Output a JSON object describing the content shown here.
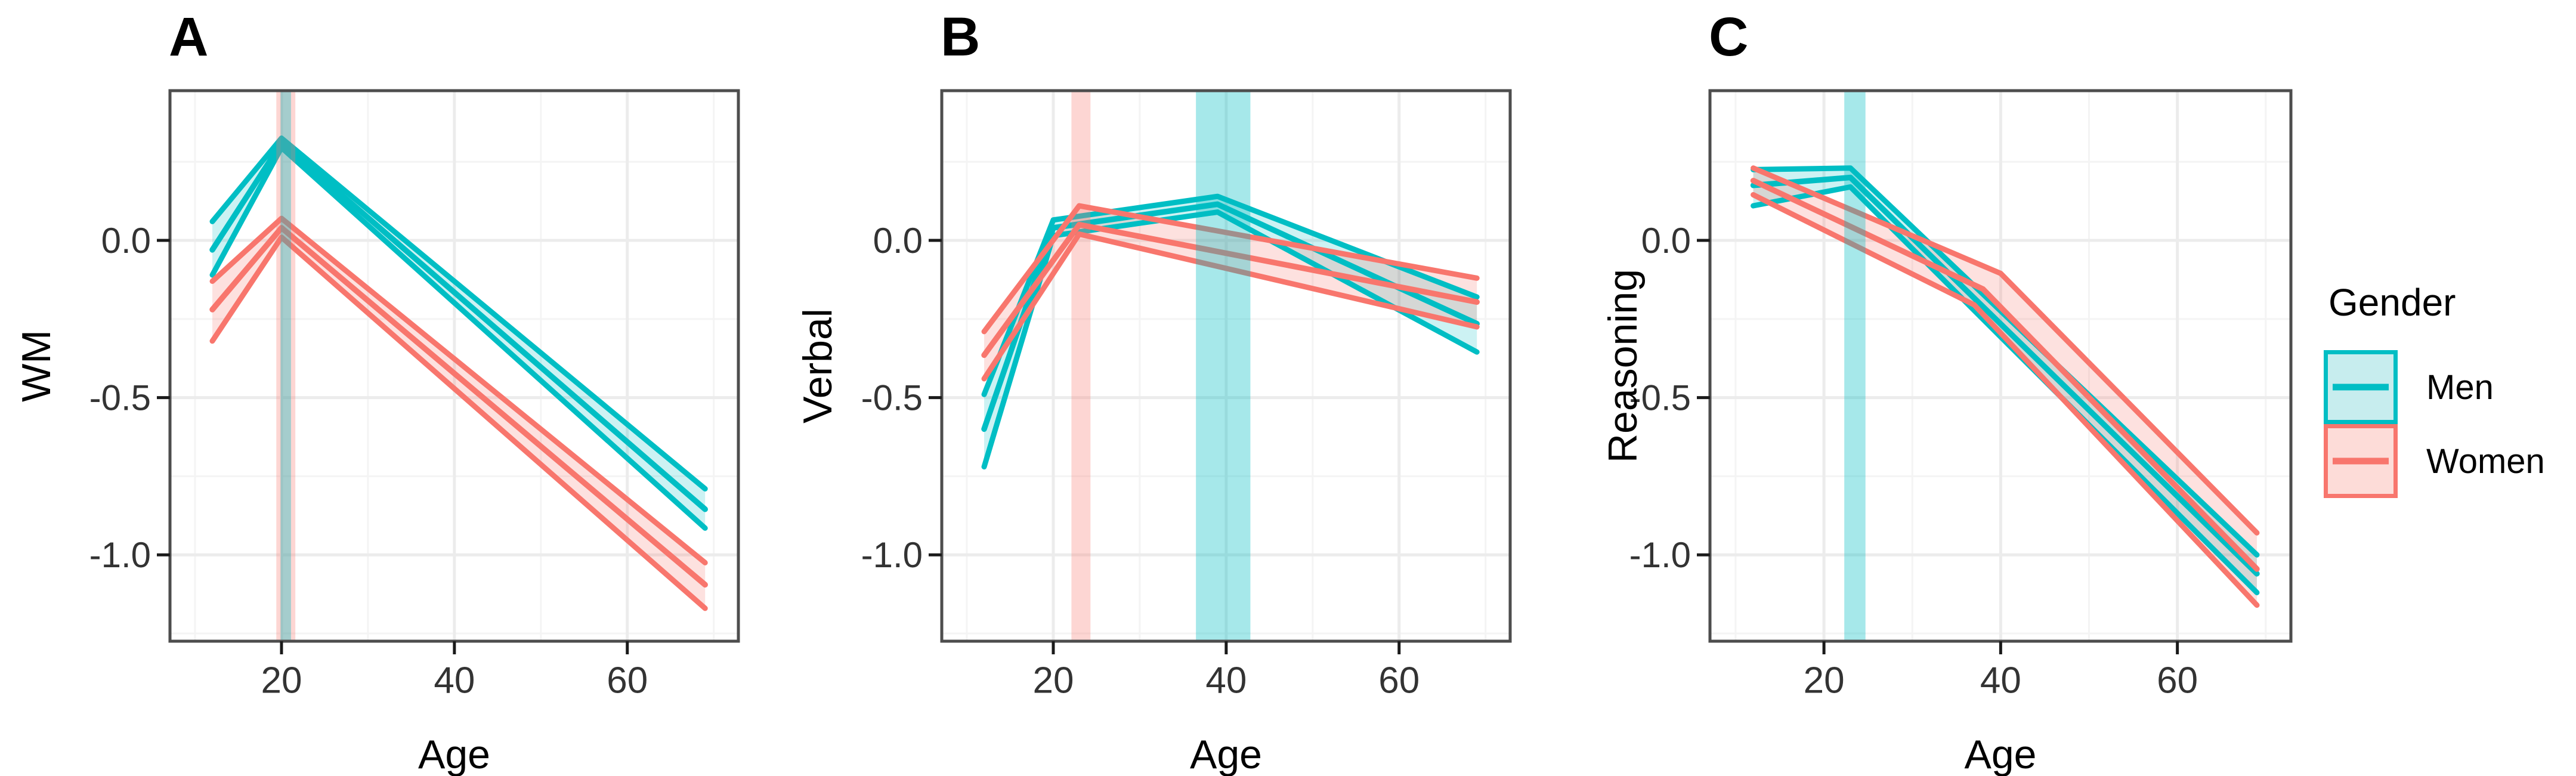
{
  "figure_type": "three-panel ggplot line figure of cognitive scores vs age by gender",
  "colors": {
    "men_line": "#00BEC4",
    "women_line": "#F8766D",
    "men_ribbon": "rgba(0,190,196,0.20)",
    "women_ribbon": "rgba(248,118,109,0.22)",
    "men_band": "rgba(0,190,196,0.35)",
    "women_band": "rgba(248,118,109,0.30)",
    "men_key_fill": "#C7EDEE",
    "women_key_fill": "#FDDCD8",
    "grid_major": "#ECECEC",
    "grid_minor": "#F4F4F4",
    "panel_border": "#4D4D4D",
    "tick_mark": "#1A1A1A",
    "tick_label": "#333333",
    "title_text": "#000000",
    "background": "#FFFFFF"
  },
  "legend": {
    "title": "Gender",
    "items": [
      {
        "label": "Men",
        "color_key": "men"
      },
      {
        "label": "Women",
        "color_key": "women"
      }
    ]
  },
  "axes_shared": {
    "x_label": "Age",
    "x_range": [
      7.1,
      72.85
    ],
    "y_range": [
      -1.2746,
      0.4761
    ],
    "x_ticks": [
      20,
      40,
      60
    ],
    "x_tick_labels": [
      "20",
      "40",
      "60"
    ],
    "x_minor_ticks": [
      10,
      30,
      50,
      70
    ],
    "y_ticks": [
      0.0,
      -0.5,
      -1.0
    ],
    "y_tick_labels": [
      "0.0",
      "-0.5",
      "-1.0"
    ],
    "y_minor_ticks": [
      0.25,
      -0.25,
      -0.75,
      -1.25
    ],
    "grid": "major+minor"
  },
  "chart_data": [
    {
      "type": "line",
      "panel_label": "A",
      "xlabel": "Age",
      "ylabel": "WM",
      "x_range": [
        7.1,
        72.85
      ],
      "y_range": [
        -1.2746,
        0.4761
      ],
      "x_ticks": [
        20,
        40,
        60
      ],
      "y_ticks": [
        0.0,
        -0.5,
        -1.0
      ],
      "series": [
        {
          "name": "Men",
          "color_key": "men",
          "mean": [
            [
              12,
              -0.03
            ],
            [
              20,
              0.31
            ],
            [
              69,
              -0.855
            ]
          ],
          "upper": [
            [
              12,
              0.06
            ],
            [
              20,
              0.325
            ],
            [
              69,
              -0.79
            ]
          ],
          "lower": [
            [
              12,
              -0.11
            ],
            [
              20,
              0.295
            ],
            [
              69,
              -0.915
            ]
          ]
        },
        {
          "name": "Women",
          "color_key": "women",
          "mean": [
            [
              12,
              -0.22
            ],
            [
              20,
              0.04
            ],
            [
              69,
              -1.095
            ]
          ],
          "upper": [
            [
              12,
              -0.13
            ],
            [
              20,
              0.07
            ],
            [
              69,
              -1.025
            ]
          ],
          "lower": [
            [
              12,
              -0.32
            ],
            [
              20,
              0.01
            ],
            [
              69,
              -1.17
            ]
          ]
        }
      ],
      "peak_age_bands": [
        {
          "series": "Women",
          "color_key": "women",
          "from": 19.4,
          "to": 21.6
        },
        {
          "series": "Men",
          "color_key": "men",
          "from": 19.9,
          "to": 21.1
        }
      ]
    },
    {
      "type": "line",
      "panel_label": "B",
      "xlabel": "Age",
      "ylabel": "Verbal",
      "x_range": [
        7.1,
        72.85
      ],
      "y_range": [
        -1.2746,
        0.4761
      ],
      "x_ticks": [
        20,
        40,
        60
      ],
      "y_ticks": [
        0.0,
        -0.5,
        -1.0
      ],
      "series": [
        {
          "name": "Men",
          "color_key": "men",
          "mean": [
            [
              12,
              -0.6
            ],
            [
              20,
              0.04
            ],
            [
              39,
              0.115
            ],
            [
              69,
              -0.265
            ]
          ],
          "upper": [
            [
              12,
              -0.49
            ],
            [
              20,
              0.065
            ],
            [
              39,
              0.14
            ],
            [
              69,
              -0.18
            ]
          ],
          "lower": [
            [
              12,
              -0.72
            ],
            [
              20,
              0.015
            ],
            [
              39,
              0.09
            ],
            [
              69,
              -0.355
            ]
          ]
        },
        {
          "name": "Women",
          "color_key": "women",
          "mean": [
            [
              12,
              -0.365
            ],
            [
              23,
              0.05
            ],
            [
              69,
              -0.196
            ]
          ],
          "upper": [
            [
              12,
              -0.29
            ],
            [
              23,
              0.11
            ],
            [
              69,
              -0.12
            ]
          ],
          "lower": [
            [
              12,
              -0.44
            ],
            [
              23,
              0.02
            ],
            [
              69,
              -0.275
            ]
          ]
        }
      ],
      "peak_age_bands": [
        {
          "series": "Women",
          "color_key": "women",
          "from": 22.1,
          "to": 24.3
        },
        {
          "series": "Men",
          "color_key": "men",
          "from": 36.5,
          "to": 42.8
        }
      ]
    },
    {
      "type": "line",
      "panel_label": "C",
      "xlabel": "Age",
      "ylabel": "Reasoning",
      "x_range": [
        7.1,
        72.85
      ],
      "y_range": [
        -1.2746,
        0.4761
      ],
      "x_ticks": [
        20,
        40,
        60
      ],
      "y_ticks": [
        0.0,
        -0.5,
        -1.0
      ],
      "series": [
        {
          "name": "Men",
          "color_key": "men",
          "mean": [
            [
              12,
              0.175
            ],
            [
              23,
              0.2
            ],
            [
              69,
              -1.06
            ]
          ],
          "upper": [
            [
              12,
              0.225
            ],
            [
              23,
              0.23
            ],
            [
              69,
              -1.0
            ]
          ],
          "lower": [
            [
              12,
              0.11
            ],
            [
              23,
              0.17
            ],
            [
              69,
              -1.12
            ]
          ]
        },
        {
          "name": "Women",
          "color_key": "women",
          "mean": [
            [
              12,
              0.19
            ],
            [
              38,
              -0.155
            ],
            [
              69,
              -1.045
            ]
          ],
          "upper": [
            [
              12,
              0.23
            ],
            [
              40,
              -0.105
            ],
            [
              69,
              -0.93
            ]
          ],
          "lower": [
            [
              12,
              0.145
            ],
            [
              37,
              -0.205
            ],
            [
              69,
              -1.16
            ]
          ]
        }
      ],
      "peak_age_bands": [
        {
          "series": "Men",
          "color_key": "men",
          "from": 22.3,
          "to": 24.7
        }
      ]
    }
  ]
}
